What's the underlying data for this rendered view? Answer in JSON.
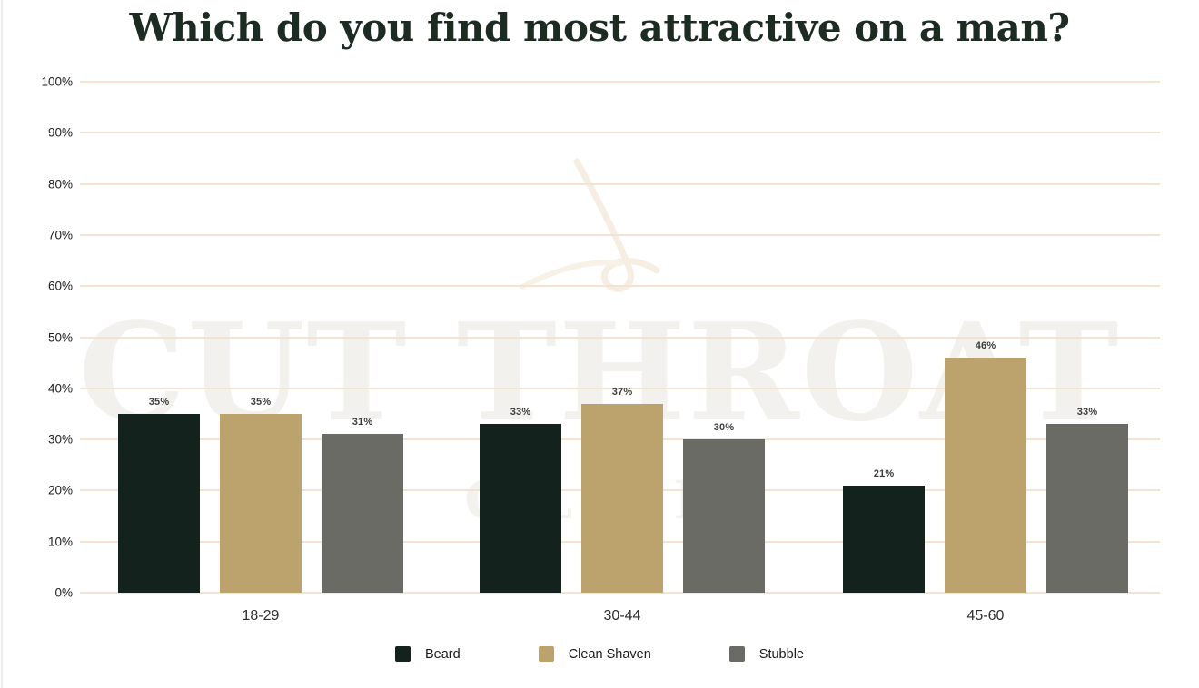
{
  "title": "Which do you find most attractive on a man?",
  "watermark": {
    "line1": "CUT THROAT",
    "line2": "CLUB",
    "icon": "scissors"
  },
  "chart_data": {
    "type": "bar",
    "title": "Which do you find most attractive on a man?",
    "categories": [
      "18-29",
      "30-44",
      "45-60"
    ],
    "series": [
      {
        "name": "Beard",
        "color": "#13221c",
        "values": [
          35,
          33,
          21
        ]
      },
      {
        "name": "Clean Shaven",
        "color": "#bca26c",
        "values": [
          35,
          37,
          46
        ]
      },
      {
        "name": "Stubble",
        "color": "#696b64",
        "values": [
          31,
          30,
          33
        ]
      }
    ],
    "value_suffix": "%",
    "xlabel": "",
    "ylabel": "",
    "ylim": [
      0,
      100
    ],
    "y_ticks": [
      "0%",
      "10%",
      "20%",
      "30%",
      "40%",
      "50%",
      "60%",
      "70%",
      "80%",
      "90%",
      "100%"
    ],
    "grid": true,
    "gridline_color": "#f2e4d1",
    "legend_position": "bottom"
  },
  "colors": {
    "background": "#ffffff",
    "title_text": "#1d2c23",
    "watermark_text": "#f2f1ee",
    "axis_text": "#1f1f1f",
    "value_label_text": "#3d3d3d"
  }
}
